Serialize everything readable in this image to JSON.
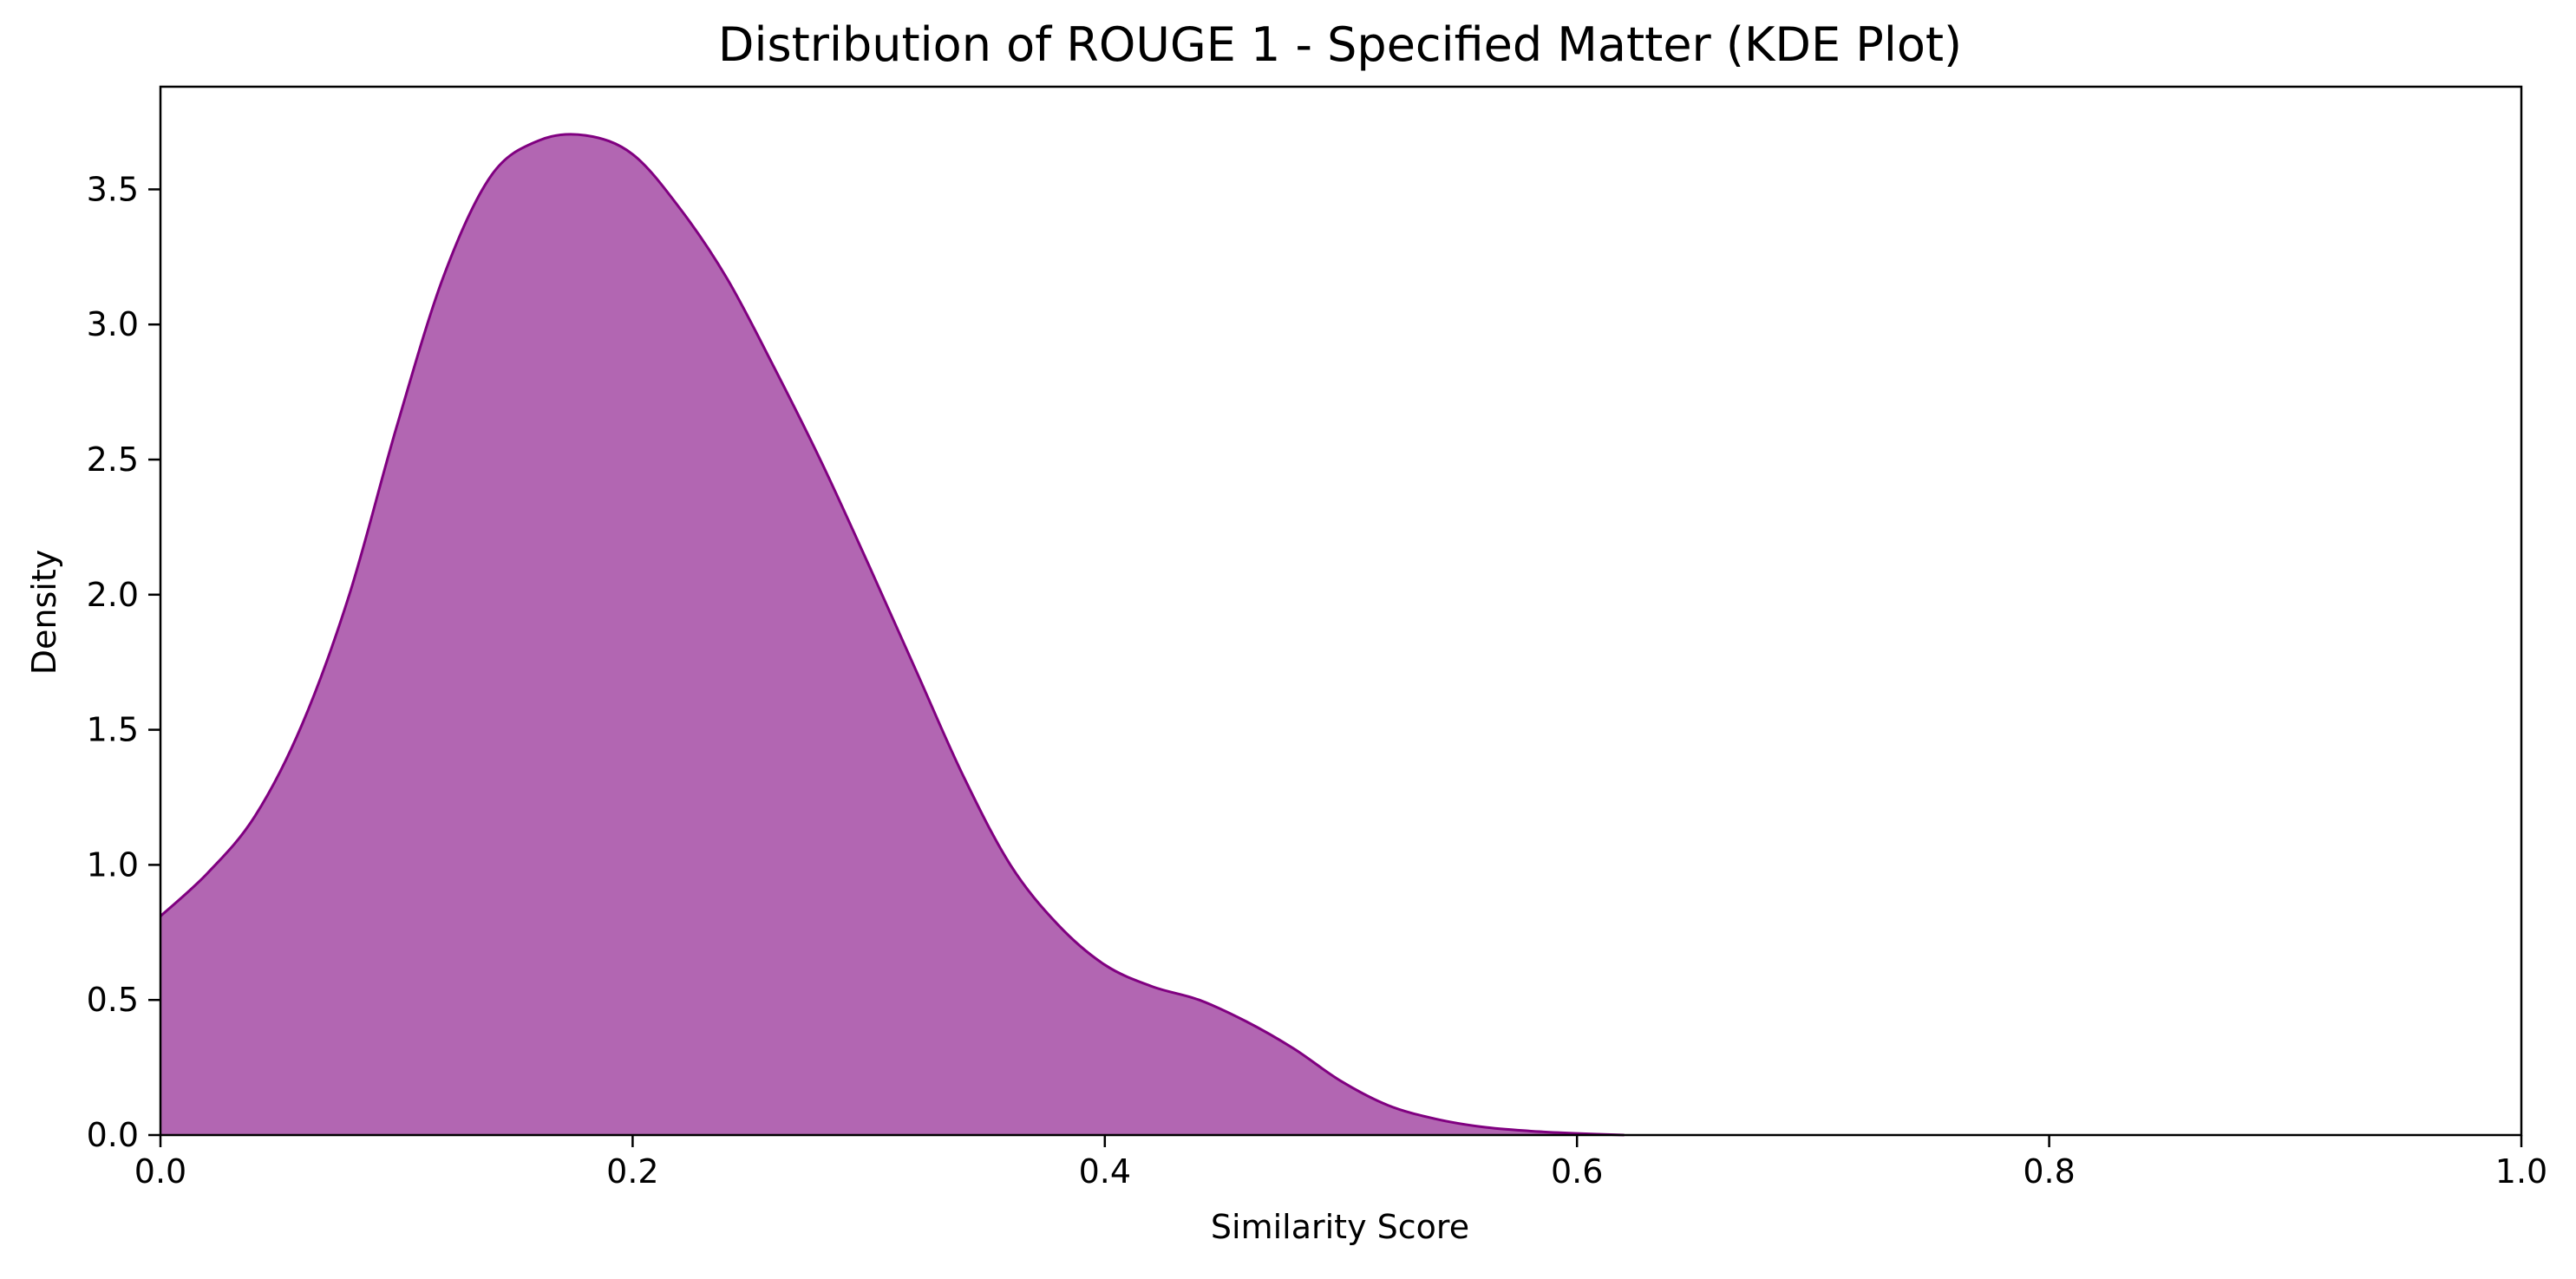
{
  "chart_data": {
    "type": "area",
    "title": "Distribution of ROUGE 1 - Specified Matter (KDE Plot)",
    "xlabel": "Similarity Score",
    "ylabel": "Density",
    "xlim": [
      0.0,
      1.0
    ],
    "ylim": [
      0.0,
      3.88
    ],
    "x_ticks": [
      0.0,
      0.2,
      0.4,
      0.6,
      0.8,
      1.0
    ],
    "x_tick_labels": [
      "0.0",
      "0.2",
      "0.4",
      "0.6",
      "0.8",
      "1.0"
    ],
    "y_ticks": [
      0.0,
      0.5,
      1.0,
      1.5,
      2.0,
      2.5,
      3.0,
      3.5
    ],
    "y_tick_labels": [
      "0.0",
      "0.5",
      "1.0",
      "1.5",
      "2.0",
      "2.5",
      "3.0",
      "3.5"
    ],
    "grid": false,
    "legend": "none",
    "fill_color": "#b266b2",
    "line_color": "#800080",
    "series": [
      {
        "x": [
          0.0,
          0.02,
          0.04,
          0.06,
          0.08,
          0.1,
          0.12,
          0.14,
          0.16,
          0.18,
          0.2,
          0.22,
          0.24,
          0.26,
          0.28,
          0.3,
          0.32,
          0.34,
          0.36,
          0.38,
          0.4,
          0.42,
          0.44,
          0.46,
          0.48,
          0.5,
          0.52,
          0.54,
          0.56,
          0.58,
          0.6,
          0.62
        ],
        "y": [
          0.81,
          0.97,
          1.18,
          1.52,
          2.0,
          2.62,
          3.18,
          3.55,
          3.68,
          3.7,
          3.63,
          3.43,
          3.17,
          2.84,
          2.49,
          2.11,
          1.72,
          1.33,
          1.0,
          0.78,
          0.63,
          0.55,
          0.5,
          0.42,
          0.32,
          0.2,
          0.11,
          0.06,
          0.03,
          0.015,
          0.006,
          0.0
        ]
      }
    ]
  }
}
